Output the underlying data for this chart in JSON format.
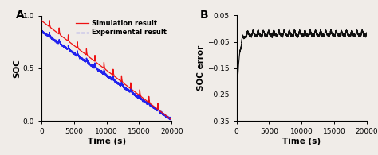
{
  "panel_A_label": "A",
  "panel_B_label": "B",
  "xlim_A": [
    0,
    20000
  ],
  "ylim_A": [
    0.0,
    1.0
  ],
  "xlim_B": [
    0,
    20000
  ],
  "ylim_B": [
    -0.35,
    0.05
  ],
  "xlabel": "Time (s)",
  "ylabel_A": "SOC",
  "ylabel_B": "SOC error",
  "xticks_A": [
    0,
    5000,
    10000,
    15000,
    20000
  ],
  "yticks_A": [
    0.0,
    0.5,
    1.0
  ],
  "xticks_B": [
    0,
    5000,
    10000,
    15000,
    20000
  ],
  "yticks_B": [
    -0.35,
    -0.25,
    -0.15,
    -0.05,
    0.05
  ],
  "sim_color": "#EE1111",
  "exp_color": "#2222EE",
  "error_color": "#111111",
  "legend_sim": "Simulation result",
  "legend_exp": "Experimental result",
  "background_color": "#f0ece8",
  "spike_times": [
    1200,
    2700,
    4100,
    5500,
    6900,
    8200,
    9600,
    11000,
    12300,
    13700,
    15100,
    16500,
    17900
  ],
  "error_steady": -0.02,
  "error_start": -0.3,
  "error_tau": 350
}
